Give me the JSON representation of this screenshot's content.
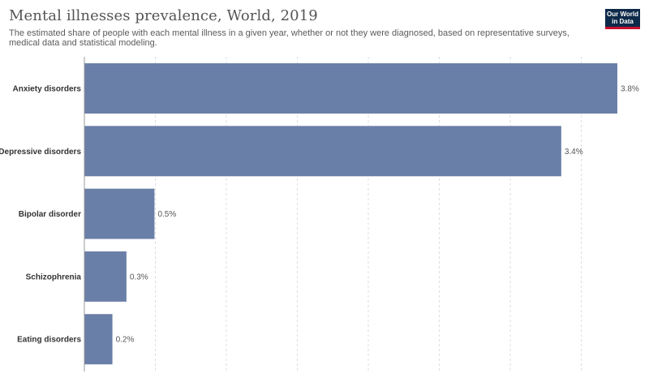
{
  "header": {
    "title": "Mental illnesses prevalence, World, 2019",
    "subtitle": "The estimated share of people with each mental illness in a given year, whether or not they were diagnosed, based on representative surveys, medical data and statistical modeling."
  },
  "logo": {
    "line1": "Our World",
    "line2": "in Data"
  },
  "colors": {
    "bar": "#6a7fa8",
    "grid": "#dddddd",
    "axis": "#999999"
  },
  "chart_data": {
    "type": "bar",
    "orientation": "horizontal",
    "title": "Mental illnesses prevalence, World, 2019",
    "categories": [
      "Anxiety disorders",
      "Depressive disorders",
      "Bipolar disorder",
      "Schizophrenia",
      "Eating disorders"
    ],
    "values": [
      3.8,
      3.4,
      0.5,
      0.3,
      0.2
    ],
    "value_labels": [
      "3.8%",
      "3.4%",
      "0.5%",
      "0.3%",
      "0.2%"
    ],
    "unit": "%",
    "xlim": [
      0,
      3.8
    ],
    "grid": true
  }
}
